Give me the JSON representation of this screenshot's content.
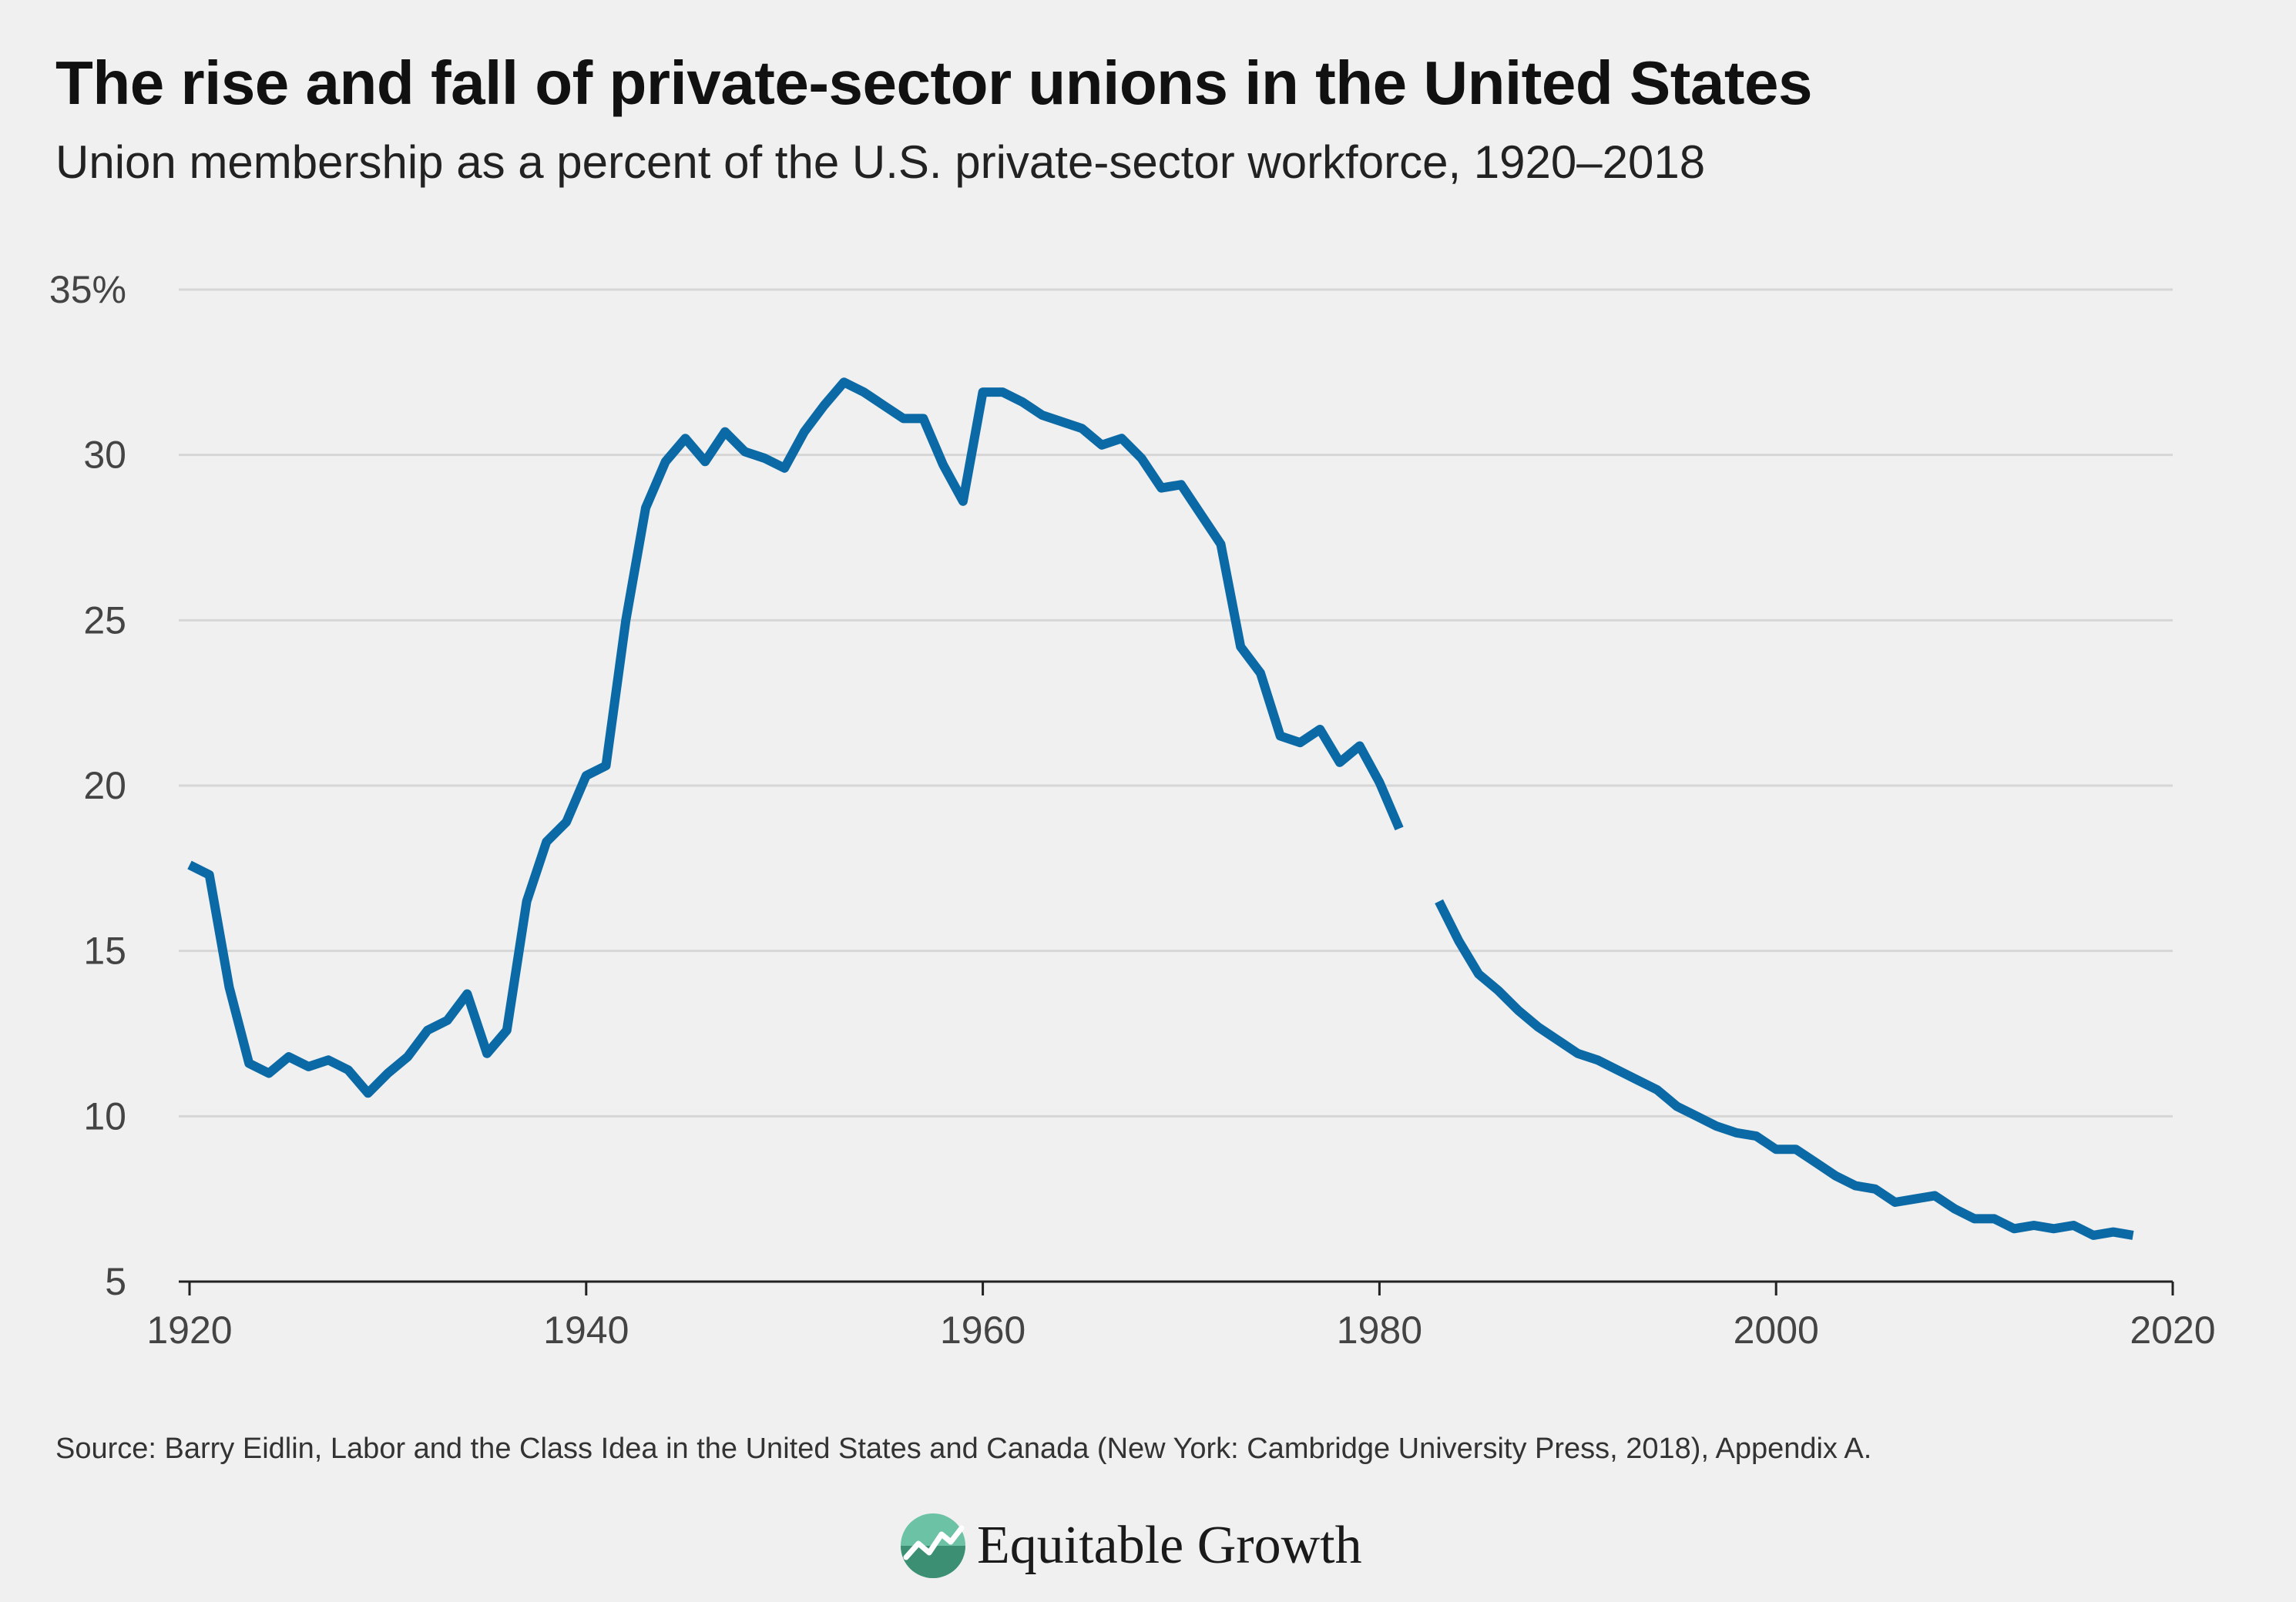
{
  "header": {
    "title": "The rise and fall of private-sector unions in the United States",
    "subtitle": "Union membership as a percent of the U.S. private-sector workforce, 1920–2018"
  },
  "footer": {
    "source": "Source: Barry Eidlin, Labor and the Class Idea in the United States and Canada (New York: Cambridge University Press, 2018), Appendix A.",
    "logo_text": "Equitable Growth",
    "logo_icon": "rising-line-circle-logo"
  },
  "colors": {
    "background": "#f0f0f0",
    "line": "#0b6aa6",
    "grid": "#d6d6d6",
    "logo_green": "#3ea887"
  },
  "chart_data": {
    "type": "line",
    "title": "",
    "xlabel": "",
    "ylabel": "",
    "xlim": [
      1920,
      2020
    ],
    "ylim": [
      5,
      35
    ],
    "x_ticks": [
      "1920",
      "1940",
      "1960",
      "1980",
      "2000",
      "2020"
    ],
    "y_ticks": [
      "5",
      "10",
      "15",
      "20",
      "25",
      "30",
      "35%"
    ],
    "grid": "horizontal",
    "legend": "none",
    "series": [
      {
        "segments": [
          {
            "x": [
              1920,
              1921,
              1922,
              1923,
              1924,
              1925,
              1926,
              1927,
              1928,
              1929,
              1930,
              1931,
              1932,
              1933,
              1934,
              1935,
              1936,
              1937,
              1938,
              1939,
              1940,
              1941,
              1942,
              1943,
              1944,
              1945,
              1946,
              1947,
              1948,
              1949,
              1950,
              1951,
              1952,
              1953,
              1954,
              1955,
              1956,
              1957,
              1958,
              1959,
              1960,
              1961,
              1962,
              1963,
              1964,
              1965,
              1966,
              1967,
              1968,
              1969,
              1970,
              1971,
              1972,
              1973,
              1974,
              1975,
              1976,
              1977,
              1978,
              1979,
              1980,
              1981
            ],
            "y": [
              17.6,
              17.3,
              13.9,
              11.6,
              11.3,
              11.8,
              11.5,
              11.7,
              11.4,
              10.7,
              11.3,
              11.8,
              12.6,
              12.9,
              13.7,
              11.9,
              12.6,
              16.5,
              18.3,
              18.9,
              20.3,
              20.6,
              25.0,
              28.4,
              29.8,
              30.5,
              29.8,
              30.7,
              30.1,
              29.9,
              29.6,
              30.7,
              31.5,
              32.2,
              31.9,
              31.5,
              31.1,
              31.1,
              29.7,
              28.6,
              31.9,
              31.9,
              31.6,
              31.2,
              31.0,
              30.8,
              30.3,
              30.5,
              29.9,
              29.0,
              29.1,
              28.2,
              27.3,
              24.2,
              23.4,
              21.5,
              21.3,
              21.7,
              20.7,
              21.2,
              20.1,
              18.7
            ]
          },
          {
            "x": [
              1983,
              1984,
              1985,
              1986,
              1987,
              1988,
              1989,
              1990,
              1991,
              1992,
              1993,
              1994,
              1995,
              1996,
              1997,
              1998,
              1999,
              2000,
              2001,
              2002,
              2003,
              2004,
              2005,
              2006,
              2007,
              2008,
              2009,
              2010,
              2011,
              2012,
              2013,
              2014,
              2015,
              2016,
              2017,
              2018
            ],
            "y": [
              16.5,
              15.3,
              14.3,
              13.8,
              13.2,
              12.7,
              12.3,
              11.9,
              11.7,
              11.4,
              11.1,
              10.8,
              10.3,
              10.0,
              9.7,
              9.5,
              9.4,
              9.0,
              9.0,
              8.6,
              8.2,
              7.9,
              7.8,
              7.4,
              7.5,
              7.6,
              7.2,
              6.9,
              6.9,
              6.6,
              6.7,
              6.6,
              6.7,
              6.4,
              6.5,
              6.4
            ]
          }
        ]
      }
    ]
  }
}
